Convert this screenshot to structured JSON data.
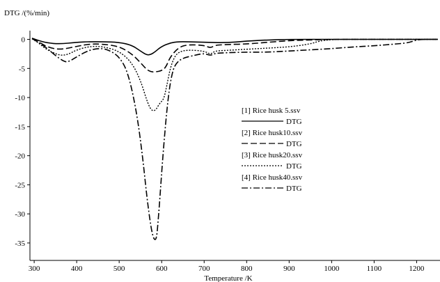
{
  "chart_data": {
    "type": "line",
    "title": "",
    "ylabel": "DTG /(%/min)",
    "xlabel": "Temperature /K",
    "xlim": [
      290,
      1255
    ],
    "ylim": [
      -38,
      1.5
    ],
    "xticks": [
      300,
      400,
      500,
      600,
      700,
      800,
      900,
      1000,
      1100,
      1200
    ],
    "yticks": [
      0,
      -5,
      -10,
      -15,
      -20,
      -25,
      -30,
      -35
    ],
    "xtick_labels": [
      "300",
      "400",
      "500",
      "600",
      "700",
      "800",
      "900",
      "1000",
      "1100",
      "1200"
    ],
    "ytick_labels": [
      "0",
      "-5",
      "-10",
      "-15",
      "-20",
      "-25",
      "-30",
      "-35"
    ],
    "grid": false,
    "legend_placement": "center-right",
    "series": [
      {
        "name": "[1] Rice husk 5.ssv",
        "legend_line_label": "DTG",
        "dash": "solid",
        "x": [
          295,
          310,
          330,
          360,
          400,
          430,
          460,
          500,
          530,
          550,
          565,
          575,
          585,
          600,
          620,
          640,
          660,
          700,
          750,
          800,
          850,
          900,
          1000,
          1100,
          1200,
          1250
        ],
        "y": [
          0.2,
          -0.2,
          -0.6,
          -0.8,
          -0.5,
          -0.4,
          -0.4,
          -0.5,
          -1.0,
          -2.0,
          -2.7,
          -2.6,
          -2.1,
          -1.2,
          -0.6,
          -0.4,
          -0.4,
          -0.5,
          -0.6,
          -0.3,
          -0.1,
          0,
          0,
          0,
          0,
          0
        ]
      },
      {
        "name": "[2] Rice husk10.ssv",
        "legend_line_label": "DTG",
        "dash": "dashed",
        "x": [
          295,
          310,
          330,
          360,
          400,
          430,
          460,
          500,
          530,
          550,
          565,
          575,
          585,
          600,
          610,
          620,
          640,
          660,
          700,
          715,
          725,
          750,
          800,
          850,
          900,
          950,
          1000,
          1100,
          1200,
          1250
        ],
        "y": [
          0.1,
          -0.4,
          -1.3,
          -1.8,
          -1.2,
          -0.8,
          -0.8,
          -1.2,
          -2.5,
          -4.0,
          -5.2,
          -5.6,
          -5.6,
          -5.4,
          -4.8,
          -3.0,
          -1.4,
          -0.9,
          -1.0,
          -1.5,
          -1.0,
          -0.9,
          -0.8,
          -0.5,
          -0.2,
          -0.1,
          0,
          0,
          0,
          0
        ]
      },
      {
        "name": "[3] Rice husk20.ssv",
        "legend_line_label": "DTG",
        "dash": "dotted",
        "x": [
          295,
          310,
          330,
          360,
          380,
          400,
          430,
          460,
          500,
          530,
          550,
          565,
          575,
          585,
          595,
          605,
          612,
          620,
          630,
          640,
          660,
          700,
          715,
          725,
          750,
          800,
          850,
          900,
          950,
          970,
          1000,
          1100,
          1200,
          1250
        ],
        "y": [
          0.1,
          -0.6,
          -1.8,
          -2.8,
          -2.6,
          -1.8,
          -1.2,
          -1.2,
          -2.0,
          -4.0,
          -7.0,
          -10.5,
          -12.2,
          -12.3,
          -11.0,
          -10.3,
          -8.0,
          -5.0,
          -3.0,
          -2.2,
          -1.8,
          -2.0,
          -2.6,
          -2.0,
          -1.9,
          -1.7,
          -1.5,
          -1.3,
          -0.8,
          -0.3,
          0,
          0,
          0,
          0
        ]
      },
      {
        "name": "[4] Rice husk40.ssv",
        "legend_line_label": "DTG",
        "dash": "dash-dot",
        "x": [
          295,
          310,
          330,
          350,
          370,
          380,
          400,
          430,
          460,
          480,
          500,
          520,
          540,
          555,
          565,
          575,
          582,
          588,
          592,
          597,
          605,
          615,
          625,
          635,
          650,
          680,
          700,
          715,
          725,
          750,
          800,
          850,
          900,
          950,
          1000,
          1050,
          1100,
          1150,
          1180,
          1195,
          1210,
          1250
        ],
        "y": [
          0.2,
          -0.5,
          -1.5,
          -2.8,
          -3.8,
          -3.9,
          -3.0,
          -1.8,
          -1.5,
          -2.0,
          -3.0,
          -5.5,
          -12.0,
          -20.0,
          -27.0,
          -32.5,
          -34.5,
          -34.3,
          -31.0,
          -26.0,
          -18.0,
          -10.0,
          -5.5,
          -4.0,
          -3.2,
          -2.7,
          -2.4,
          -2.8,
          -2.4,
          -2.3,
          -2.2,
          -2.2,
          -2.0,
          -1.8,
          -1.6,
          -1.3,
          -1.1,
          -0.8,
          -0.6,
          -0.2,
          0,
          0
        ]
      }
    ]
  }
}
